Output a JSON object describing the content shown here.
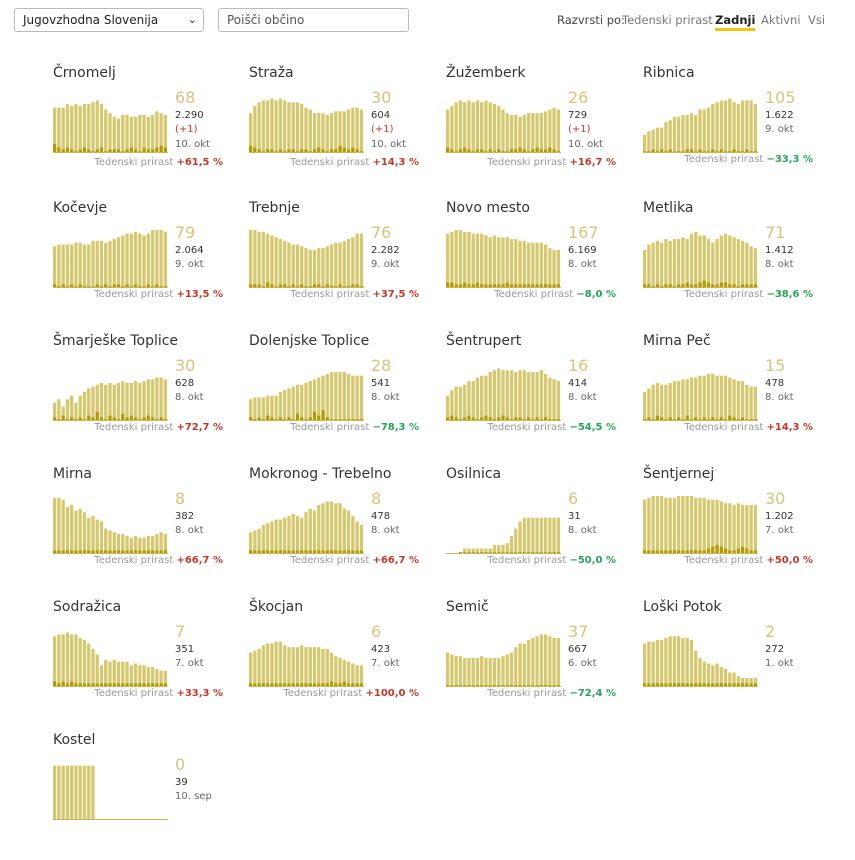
{
  "controls": {
    "region_select_value": "Jugovzhodna Slovenija",
    "search_placeholder": "Poišči občino",
    "sort_label": "Razvrsti po:",
    "sort_options": [
      "Tedenski prirast",
      "Zadnji",
      "Aktivni",
      "Vsi"
    ],
    "sort_active": "Zadnji"
  },
  "growth_label": "Tedenski prirast",
  "colors": {
    "bar": "#d6c86e",
    "bar_dark": "#b39a00",
    "up": "#c0392b",
    "down": "#27a35a",
    "highlight": "#f2c40a"
  },
  "municipalities": [
    {
      "name": "Črnomelj",
      "value": "68",
      "total": "2.290",
      "delta": "(+1)",
      "date": "10. okt",
      "growth": "+61,5 %",
      "series": [
        25,
        25,
        25,
        27,
        26,
        27,
        26,
        27,
        27,
        28,
        29,
        27,
        24,
        22,
        20,
        19,
        21,
        21,
        20,
        20,
        21,
        21,
        20,
        21,
        23,
        22,
        21
      ],
      "recent": [
        5,
        3,
        2,
        3,
        2,
        1,
        2,
        3,
        2,
        1,
        2,
        3,
        1,
        2,
        2,
        2,
        1,
        2,
        3,
        2,
        1,
        3,
        2,
        2,
        3,
        4,
        3
      ]
    },
    {
      "name": "Straža",
      "value": "30",
      "total": "604",
      "delta": "(+1)",
      "date": "10. okt",
      "growth": "+14,3 %",
      "series": [
        22,
        26,
        28,
        29,
        29,
        30,
        29,
        30,
        29,
        28,
        28,
        28,
        27,
        25,
        24,
        22,
        22,
        22,
        21,
        22,
        23,
        23,
        23,
        24,
        25,
        25,
        24
      ],
      "recent": [
        4,
        3,
        2,
        1,
        2,
        2,
        1,
        2,
        1,
        2,
        2,
        1,
        2,
        2,
        1,
        2,
        3,
        2,
        1,
        2,
        2,
        4,
        3,
        2,
        3,
        2,
        1
      ]
    },
    {
      "name": "Žužemberk",
      "value": "26",
      "total": "729",
      "delta": "(+1)",
      "date": "10. okt",
      "growth": "+16,7 %",
      "series": [
        24,
        26,
        28,
        29,
        28,
        29,
        28,
        29,
        28,
        29,
        28,
        27,
        26,
        24,
        22,
        21,
        21,
        20,
        21,
        22,
        22,
        22,
        22,
        23,
        24,
        25,
        24
      ],
      "recent": [
        3,
        2,
        1,
        2,
        3,
        2,
        1,
        2,
        2,
        1,
        2,
        1,
        2,
        1,
        1,
        2,
        2,
        3,
        2,
        1,
        2,
        3,
        2,
        2,
        3,
        2,
        1
      ]
    },
    {
      "name": "Ribnica",
      "value": "105",
      "total": "1.622",
      "delta": "",
      "date": "9. okt",
      "growth": "−33,3 %",
      "series": [
        10,
        12,
        13,
        14,
        14,
        17,
        18,
        20,
        20,
        21,
        21,
        22,
        21,
        24,
        24,
        25,
        27,
        28,
        29,
        29,
        30,
        28,
        27,
        29,
        29,
        29,
        27
      ],
      "recent": [
        1,
        1,
        2,
        1,
        2,
        1,
        2,
        1,
        1,
        1,
        2,
        2,
        1,
        2,
        1,
        1,
        2,
        1,
        2,
        1,
        1,
        2,
        1,
        1,
        2,
        1,
        1
      ]
    },
    {
      "name": "Kočevje",
      "value": "79",
      "total": "2.064",
      "delta": "",
      "date": "9. okt",
      "growth": "+13,5 %",
      "series": [
        23,
        24,
        24,
        24,
        24,
        25,
        25,
        24,
        24,
        26,
        26,
        26,
        25,
        26,
        27,
        28,
        29,
        30,
        30,
        31,
        30,
        29,
        30,
        32,
        32,
        32,
        31
      ],
      "recent": [
        2,
        1,
        2,
        1,
        2,
        1,
        2,
        1,
        1,
        1,
        2,
        1,
        2,
        1,
        2,
        2,
        1,
        2,
        1,
        2,
        1,
        1,
        2,
        1,
        2,
        1,
        1
      ]
    },
    {
      "name": "Trebnje",
      "value": "76",
      "total": "2.282",
      "delta": "",
      "date": "9. okt",
      "growth": "+37,5 %",
      "series": [
        32,
        32,
        31,
        31,
        30,
        29,
        28,
        27,
        26,
        25,
        24,
        24,
        23,
        22,
        21,
        21,
        22,
        22,
        23,
        24,
        25,
        25,
        26,
        27,
        28,
        30,
        30
      ],
      "recent": [
        2,
        2,
        2,
        1,
        3,
        2,
        1,
        2,
        2,
        1,
        2,
        1,
        2,
        1,
        1,
        2,
        2,
        1,
        2,
        1,
        1,
        2,
        1,
        1,
        2,
        2,
        1
      ]
    },
    {
      "name": "Novo mesto",
      "value": "167",
      "total": "6.169",
      "delta": "",
      "date": "8. okt",
      "growth": "−8,0 %",
      "series": [
        30,
        31,
        32,
        32,
        31,
        31,
        30,
        30,
        30,
        29,
        28,
        29,
        28,
        28,
        28,
        27,
        27,
        26,
        26,
        25,
        25,
        25,
        25,
        24,
        22,
        21,
        21
      ],
      "recent": [
        3,
        3,
        2,
        2,
        3,
        2,
        2,
        3,
        2,
        2,
        2,
        2,
        2,
        2,
        3,
        2,
        2,
        2,
        2,
        2,
        2,
        2,
        2,
        2,
        2,
        2,
        2
      ]
    },
    {
      "name": "Metlika",
      "value": "71",
      "total": "1.412",
      "delta": "",
      "date": "8. okt",
      "growth": "−38,6 %",
      "series": [
        21,
        24,
        25,
        26,
        25,
        27,
        26,
        27,
        27,
        28,
        27,
        30,
        31,
        29,
        29,
        27,
        25,
        27,
        29,
        30,
        29,
        28,
        27,
        26,
        25,
        23,
        22
      ],
      "recent": [
        2,
        2,
        1,
        2,
        1,
        2,
        2,
        1,
        2,
        2,
        3,
        2,
        2,
        3,
        4,
        3,
        2,
        2,
        3,
        3,
        2,
        2,
        1,
        2,
        2,
        2,
        2
      ]
    },
    {
      "name": "Šmarješke Toplice",
      "value": "30",
      "total": "628",
      "delta": "",
      "date": "8. okt",
      "growth": "+72,7 %",
      "series": [
        10,
        12,
        8,
        12,
        14,
        10,
        14,
        16,
        18,
        19,
        20,
        21,
        20,
        21,
        20,
        21,
        22,
        21,
        21,
        22,
        21,
        22,
        23,
        23,
        24,
        24,
        23
      ],
      "recent": [
        2,
        1,
        3,
        1,
        2,
        1,
        2,
        1,
        3,
        2,
        5,
        2,
        1,
        3,
        2,
        1,
        4,
        2,
        3,
        2,
        1,
        2,
        3,
        2,
        1,
        2,
        1
      ]
    },
    {
      "name": "Dolenjske Toplice",
      "value": "28",
      "total": "541",
      "delta": "",
      "date": "8. okt",
      "growth": "−78,3 %",
      "series": [
        12,
        13,
        13,
        13,
        14,
        14,
        14,
        16,
        17,
        18,
        19,
        20,
        20,
        21,
        22,
        23,
        24,
        25,
        26,
        27,
        27,
        27,
        27,
        26,
        25,
        25,
        25
      ],
      "recent": [
        2,
        1,
        2,
        1,
        3,
        2,
        1,
        2,
        1,
        2,
        1,
        4,
        2,
        1,
        2,
        5,
        3,
        6,
        2,
        1,
        1,
        1,
        1,
        1,
        1,
        1,
        1
      ]
    },
    {
      "name": "Šentrupert",
      "value": "16",
      "total": "414",
      "delta": "",
      "date": "8. okt",
      "growth": "−54,5 %",
      "series": [
        14,
        17,
        19,
        19,
        20,
        22,
        22,
        24,
        25,
        25,
        27,
        28,
        29,
        28,
        28,
        28,
        27,
        28,
        28,
        27,
        27,
        27,
        28,
        26,
        24,
        23,
        22
      ],
      "recent": [
        2,
        3,
        2,
        1,
        2,
        3,
        2,
        1,
        2,
        3,
        2,
        1,
        2,
        3,
        2,
        1,
        2,
        2,
        1,
        2,
        1,
        2,
        1,
        2,
        1,
        1,
        1
      ]
    },
    {
      "name": "Mirna Peč",
      "value": "15",
      "total": "478",
      "delta": "",
      "date": "8. okt",
      "growth": "+14,3 %",
      "series": [
        16,
        18,
        20,
        21,
        20,
        20,
        21,
        22,
        22,
        23,
        23,
        24,
        24,
        25,
        25,
        26,
        26,
        25,
        25,
        25,
        24,
        23,
        22,
        22,
        20,
        19,
        19
      ],
      "recent": [
        1,
        2,
        1,
        3,
        2,
        1,
        2,
        1,
        2,
        1,
        3,
        1,
        2,
        1,
        2,
        1,
        2,
        1,
        2,
        1,
        3,
        2,
        1,
        2,
        1,
        1,
        1
      ]
    },
    {
      "name": "Mirna",
      "value": "8",
      "total": "382",
      "delta": "",
      "date": "8. okt",
      "growth": "+66,7 %",
      "series": [
        31,
        31,
        30,
        26,
        27,
        24,
        25,
        23,
        20,
        21,
        19,
        18,
        14,
        13,
        12,
        11,
        11,
        10,
        9,
        10,
        9,
        9,
        10,
        10,
        11,
        12,
        11
      ],
      "recent": [
        2,
        2,
        2,
        2,
        2,
        2,
        2,
        2,
        2,
        2,
        2,
        2,
        2,
        2,
        2,
        2,
        2,
        2,
        2,
        2,
        2,
        2,
        2,
        2,
        2,
        2,
        2
      ]
    },
    {
      "name": "Mokronog - Trebelno",
      "value": "8",
      "total": "478",
      "delta": "",
      "date": "8. okt",
      "growth": "+66,7 %",
      "series": [
        12,
        13,
        14,
        16,
        17,
        18,
        19,
        19,
        20,
        21,
        22,
        21,
        20,
        23,
        25,
        24,
        27,
        28,
        29,
        29,
        28,
        28,
        25,
        24,
        21,
        18,
        16
      ],
      "recent": [
        2,
        2,
        2,
        2,
        2,
        2,
        2,
        2,
        2,
        2,
        2,
        2,
        2,
        2,
        2,
        2,
        2,
        2,
        2,
        2,
        2,
        2,
        2,
        2,
        2,
        2,
        2
      ]
    },
    {
      "name": "Osilnica",
      "value": "6",
      "total": "31",
      "delta": "",
      "date": "8. okt",
      "growth": "−50,0 %",
      "series": [
        0,
        0,
        0,
        1,
        3,
        3,
        3,
        3,
        3,
        3,
        3,
        5,
        5,
        5,
        6,
        10,
        14,
        18,
        20,
        20,
        20,
        20,
        20,
        20,
        20,
        20,
        20
      ],
      "recent": [
        0,
        0,
        0,
        1,
        1,
        1,
        1,
        1,
        1,
        1,
        1,
        1,
        1,
        1,
        1,
        1,
        1,
        1,
        1,
        1,
        1,
        1,
        1,
        1,
        1,
        1,
        1
      ]
    },
    {
      "name": "Šentjernej",
      "value": "30",
      "total": "1.202",
      "delta": "",
      "date": "7. okt",
      "growth": "+50,0 %",
      "series": [
        30,
        31,
        32,
        32,
        32,
        31,
        31,
        31,
        32,
        32,
        32,
        32,
        31,
        31,
        31,
        30,
        30,
        30,
        29,
        28,
        28,
        27,
        28,
        27,
        27,
        27,
        27
      ],
      "recent": [
        2,
        2,
        2,
        2,
        2,
        2,
        2,
        2,
        2,
        2,
        2,
        2,
        2,
        2,
        2,
        3,
        4,
        5,
        4,
        3,
        2,
        2,
        3,
        4,
        3,
        2,
        2
      ]
    },
    {
      "name": "Sodražica",
      "value": "7",
      "total": "351",
      "delta": "",
      "date": "7. okt",
      "growth": "+33,3 %",
      "series": [
        28,
        29,
        29,
        30,
        29,
        29,
        27,
        26,
        24,
        21,
        18,
        12,
        15,
        14,
        15,
        14,
        14,
        14,
        12,
        13,
        12,
        12,
        11,
        11,
        10,
        9,
        9
      ],
      "recent": [
        3,
        2,
        3,
        2,
        3,
        2,
        2,
        2,
        2,
        2,
        2,
        2,
        2,
        2,
        2,
        2,
        2,
        2,
        2,
        2,
        2,
        2,
        2,
        2,
        2,
        2,
        2
      ]
    },
    {
      "name": "Škocjan",
      "value": "6",
      "total": "423",
      "delta": "",
      "date": "7. okt",
      "growth": "+100,0 %",
      "series": [
        19,
        20,
        21,
        23,
        24,
        24,
        25,
        25,
        23,
        22,
        22,
        22,
        23,
        22,
        22,
        22,
        22,
        21,
        21,
        19,
        17,
        16,
        15,
        14,
        13,
        12,
        12
      ],
      "recent": [
        2,
        2,
        2,
        2,
        2,
        2,
        2,
        2,
        2,
        2,
        2,
        2,
        2,
        2,
        2,
        2,
        2,
        2,
        2,
        3,
        2,
        2,
        3,
        2,
        2,
        2,
        2
      ]
    },
    {
      "name": "Semič",
      "value": "37",
      "total": "667",
      "delta": "",
      "date": "6. okt",
      "growth": "−72,4 %",
      "series": [
        19,
        18,
        17,
        17,
        16,
        16,
        16,
        16,
        17,
        16,
        16,
        16,
        16,
        17,
        18,
        19,
        22,
        24,
        24,
        26,
        27,
        28,
        29,
        29,
        28,
        27,
        27
      ],
      "recent": [
        1,
        1,
        1,
        1,
        1,
        1,
        1,
        1,
        1,
        1,
        1,
        1,
        1,
        1,
        1,
        1,
        1,
        1,
        1,
        1,
        1,
        1,
        1,
        1,
        1,
        1,
        1
      ]
    },
    {
      "name": "Loški Potok",
      "value": "2",
      "total": "272",
      "delta": "",
      "date": "1. okt",
      "growth": "",
      "series": [
        24,
        25,
        25,
        26,
        26,
        27,
        28,
        28,
        28,
        27,
        27,
        26,
        20,
        16,
        14,
        13,
        12,
        13,
        11,
        10,
        8,
        8,
        6,
        5,
        5,
        5,
        5
      ],
      "recent": [
        2,
        2,
        2,
        2,
        2,
        2,
        2,
        2,
        2,
        2,
        2,
        2,
        2,
        2,
        2,
        2,
        2,
        2,
        2,
        2,
        2,
        2,
        2,
        2,
        2,
        2,
        2
      ]
    },
    {
      "name": "Kostel",
      "value": "0",
      "total": "39",
      "delta": "",
      "date": "10. sep",
      "growth": "",
      "series": [
        30,
        30,
        30,
        30,
        30,
        30,
        30,
        30,
        30,
        30,
        0,
        0,
        0,
        0,
        0,
        0,
        0,
        0,
        0,
        0,
        0,
        0,
        0,
        0,
        0,
        0,
        0
      ],
      "recent": [
        0,
        0,
        0,
        0,
        0,
        0,
        0,
        0,
        0,
        0,
        0,
        0,
        0,
        0,
        0,
        0,
        0,
        0,
        0,
        0,
        0,
        0,
        0,
        0,
        0,
        0,
        0
      ]
    }
  ]
}
